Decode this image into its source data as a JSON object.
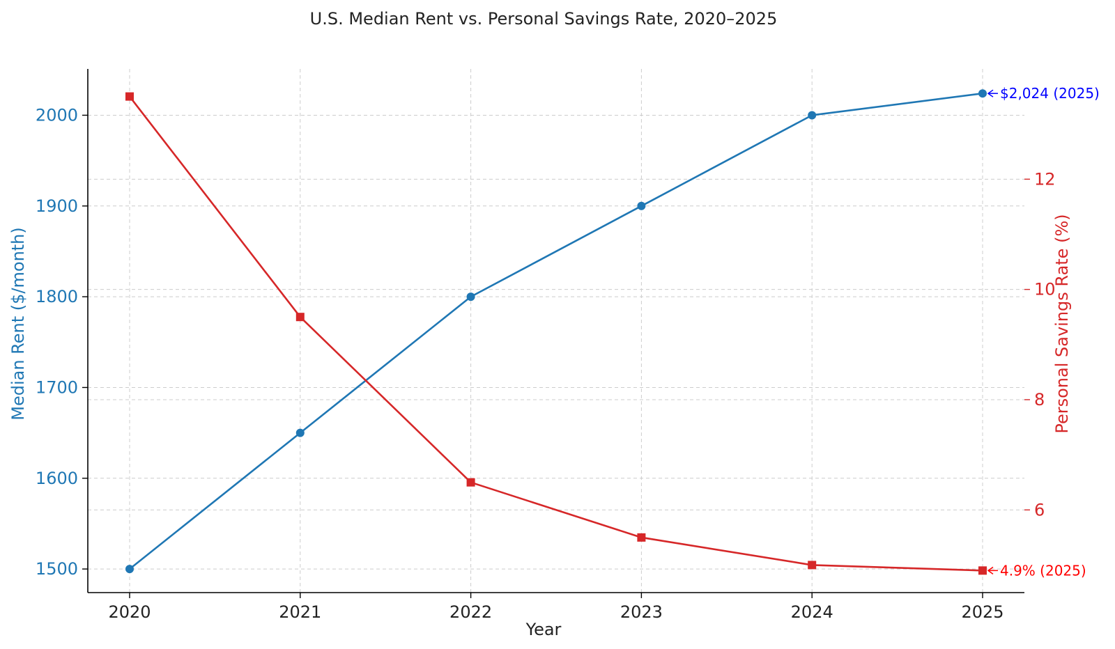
{
  "chart_data": {
    "type": "line",
    "title": "U.S. Median Rent vs. Personal Savings Rate, 2020–2025",
    "xlabel": "Year",
    "ylabel_left": "Median Rent ($/month)",
    "ylabel_right": "Personal Savings Rate (%)",
    "x": [
      2020,
      2021,
      2022,
      2023,
      2024,
      2025
    ],
    "x_tick_labels": [
      "2020",
      "2021",
      "2022",
      "2023",
      "2024",
      "2025"
    ],
    "y_left_ticks": [
      1500,
      1600,
      1700,
      1800,
      1900,
      2000
    ],
    "y_left_range": [
      1474,
      2051
    ],
    "y_right_ticks": [
      6,
      8,
      10,
      12
    ],
    "y_right_range": [
      4.5,
      14.0
    ],
    "grid": true,
    "series": [
      {
        "axis": "left",
        "color": "#1f77b4",
        "marker": "circle",
        "values": [
          1500,
          1650,
          1800,
          1900,
          2000,
          2024
        ]
      },
      {
        "axis": "right",
        "color": "#d62728",
        "marker": "square",
        "values": [
          13.5,
          9.5,
          6.5,
          5.5,
          5.0,
          4.9
        ]
      }
    ],
    "annotations": [
      {
        "text": "$2,024 (2025)",
        "x": 2025,
        "axis": "left",
        "y": 2024,
        "color": "#0000ff"
      },
      {
        "text": "4.9% (2025)",
        "x": 2025,
        "axis": "right",
        "y": 4.9,
        "color": "#ff0000"
      }
    ]
  }
}
